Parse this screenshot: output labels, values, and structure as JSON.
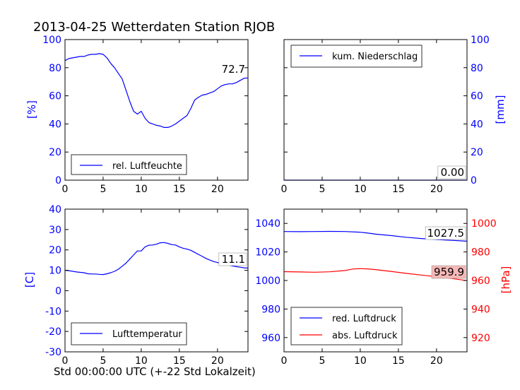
{
  "figure": {
    "title": "2013-04-25 Wetterdaten Station RJOB",
    "xlabel": "Std 00:00:00 UTC (+-22 Std Lokalzeit)"
  },
  "colors": {
    "blue": "#0000ff",
    "red": "#ff0000",
    "axis": "#000000",
    "last_box_red": "#f7b8b8"
  },
  "chart_data": [
    {
      "type": "line",
      "panel": "top-left",
      "ylabel": "[%]",
      "xlim": [
        0,
        24
      ],
      "ylim": [
        0,
        100
      ],
      "xticks": [
        0,
        5,
        10,
        15,
        20
      ],
      "yticks": [
        0,
        20,
        40,
        60,
        80,
        100
      ],
      "legend_placement": "lower-left",
      "last_value_label": "72.7",
      "series": [
        {
          "name": "rel. Luftfeuchte",
          "color": "#0000ff",
          "x": [
            0,
            0.5,
            1,
            1.5,
            2,
            2.5,
            3,
            3.5,
            4,
            4.5,
            5,
            5.5,
            6,
            6.5,
            7,
            7.5,
            8,
            8.5,
            9,
            9.5,
            10,
            10.5,
            11,
            11.5,
            12,
            12.5,
            13,
            13.5,
            14,
            14.5,
            15,
            15.5,
            16,
            16.5,
            17,
            17.5,
            18,
            18.5,
            19,
            19.5,
            20,
            20.5,
            21,
            21.5,
            22,
            22.5,
            23,
            23.5,
            24
          ],
          "y": [
            85,
            86.5,
            87,
            87.5,
            88,
            88,
            89,
            89.5,
            89.5,
            90,
            89.5,
            87,
            83,
            80,
            76,
            72,
            64,
            56,
            49,
            47,
            49,
            44,
            41,
            40,
            39,
            38.5,
            37.5,
            37.5,
            38.5,
            40,
            42,
            44,
            46,
            51,
            57,
            59,
            60.5,
            61,
            62,
            63,
            65,
            67,
            68,
            68.5,
            68.5,
            69.5,
            71,
            72.5,
            72.7
          ]
        }
      ]
    },
    {
      "type": "line",
      "panel": "top-right",
      "ylabel": "[mm]",
      "xlim": [
        0,
        24
      ],
      "ylim": [
        0,
        100
      ],
      "xticks": [
        0,
        5,
        10,
        15,
        20
      ],
      "yticks": [
        0,
        20,
        40,
        60,
        80,
        100
      ],
      "legend_placement": "upper-left",
      "last_value_label": "0.00",
      "series": [
        {
          "name": "kum. Niederschlag",
          "color": "#0000ff",
          "x": [
            0,
            24
          ],
          "y": [
            0,
            0
          ]
        }
      ]
    },
    {
      "type": "line",
      "panel": "bottom-left",
      "ylabel": "[C]",
      "xlim": [
        0,
        24
      ],
      "ylim": [
        -30,
        40
      ],
      "xticks": [
        0,
        5,
        10,
        15,
        20
      ],
      "yticks": [
        -30,
        -20,
        -10,
        0,
        10,
        20,
        30,
        40
      ],
      "legend_placement": "lower-left",
      "last_value_label": "11.1",
      "series": [
        {
          "name": "Lufttemperatur",
          "color": "#0000ff",
          "x": [
            0,
            0.5,
            1,
            1.5,
            2,
            2.5,
            3,
            3.5,
            4,
            4.5,
            5,
            5.5,
            6,
            6.5,
            7,
            7.5,
            8,
            8.5,
            9,
            9.5,
            10,
            10.5,
            11,
            11.5,
            12,
            12.5,
            13,
            13.5,
            14,
            14.5,
            15,
            15.5,
            16,
            16.5,
            17,
            17.5,
            18,
            18.5,
            19,
            19.5,
            20,
            20.5,
            21,
            21.5,
            22,
            22.5,
            23,
            23.5,
            24
          ],
          "y": [
            10,
            9.8,
            9.5,
            9.2,
            9,
            8.8,
            8.3,
            8.2,
            8.2,
            8,
            7.9,
            8.3,
            8.8,
            9.5,
            10.5,
            12,
            13.5,
            15.5,
            17.5,
            19.5,
            19.5,
            21.5,
            22.3,
            22.4,
            22.8,
            23.5,
            23.6,
            23.2,
            22.6,
            22.4,
            21.5,
            20.8,
            20.4,
            19.8,
            18.8,
            17.8,
            16.8,
            15.8,
            15,
            14.3,
            13.8,
            13.3,
            12.9,
            12.5,
            12.1,
            11.8,
            11.5,
            11.2,
            11.1
          ]
        }
      ]
    },
    {
      "type": "line",
      "panel": "bottom-right",
      "xlim": [
        0,
        24
      ],
      "ylim": [
        950,
        1050
      ],
      "yticks": [
        960,
        980,
        1000,
        1020,
        1040
      ],
      "ylim_right": [
        910,
        1010
      ],
      "yticks_right": [
        920,
        940,
        960,
        980,
        1000
      ],
      "ylabel_right": "[hPa]",
      "xticks": [
        0,
        5,
        10,
        15,
        20
      ],
      "legend_placement": "lower-left",
      "last_value_labels": [
        "1027.5",
        "959.9"
      ],
      "series": [
        {
          "name": "red. Luftdruck",
          "color": "#0000ff",
          "axis": "left",
          "x": [
            0,
            2,
            4,
            6,
            8,
            10,
            11,
            12,
            14,
            16,
            18,
            20,
            22,
            24
          ],
          "y": [
            1034.3,
            1034.2,
            1034.3,
            1034.4,
            1034.3,
            1033.8,
            1033.2,
            1032.5,
            1031.5,
            1030.3,
            1029.4,
            1028.7,
            1028.1,
            1027.5
          ]
        },
        {
          "name": "abs. Luftdruck",
          "color": "#ff0000",
          "axis": "right",
          "x": [
            0,
            2,
            4,
            6,
            8,
            9,
            10,
            11,
            12,
            13,
            14,
            16,
            18,
            20,
            22,
            24
          ],
          "y": [
            966.2,
            966,
            965.8,
            966.1,
            967,
            968,
            968.3,
            968.1,
            967.6,
            967,
            966.4,
            965,
            963.8,
            962.6,
            961.4,
            959.9
          ]
        }
      ]
    }
  ]
}
